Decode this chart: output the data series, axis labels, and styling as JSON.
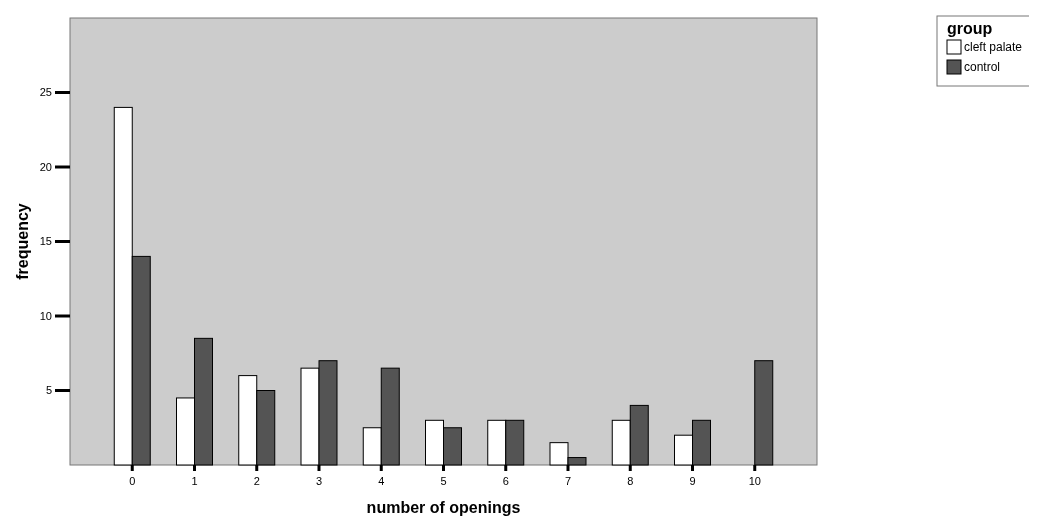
{
  "chart_data": {
    "type": "bar",
    "xlabel": "number of openings",
    "ylabel": "frequency",
    "legend_title": "group",
    "categories": [
      "0",
      "1",
      "2",
      "3",
      "4",
      "5",
      "6",
      "7",
      "8",
      "9",
      "10"
    ],
    "series": [
      {
        "name": "cleft palate",
        "color": "#ffffff",
        "values": [
          24,
          4.5,
          6,
          6.5,
          2.5,
          3,
          3,
          1.5,
          3,
          2,
          null
        ]
      },
      {
        "name": "control",
        "color": "#545454",
        "values": [
          14,
          8.5,
          5,
          7,
          6.5,
          2.5,
          3,
          0.5,
          4,
          3,
          7
        ]
      }
    ],
    "ylim": [
      0,
      30
    ],
    "yticks": [
      5,
      10,
      15,
      20,
      25
    ],
    "grid": false,
    "legend": "top right"
  }
}
